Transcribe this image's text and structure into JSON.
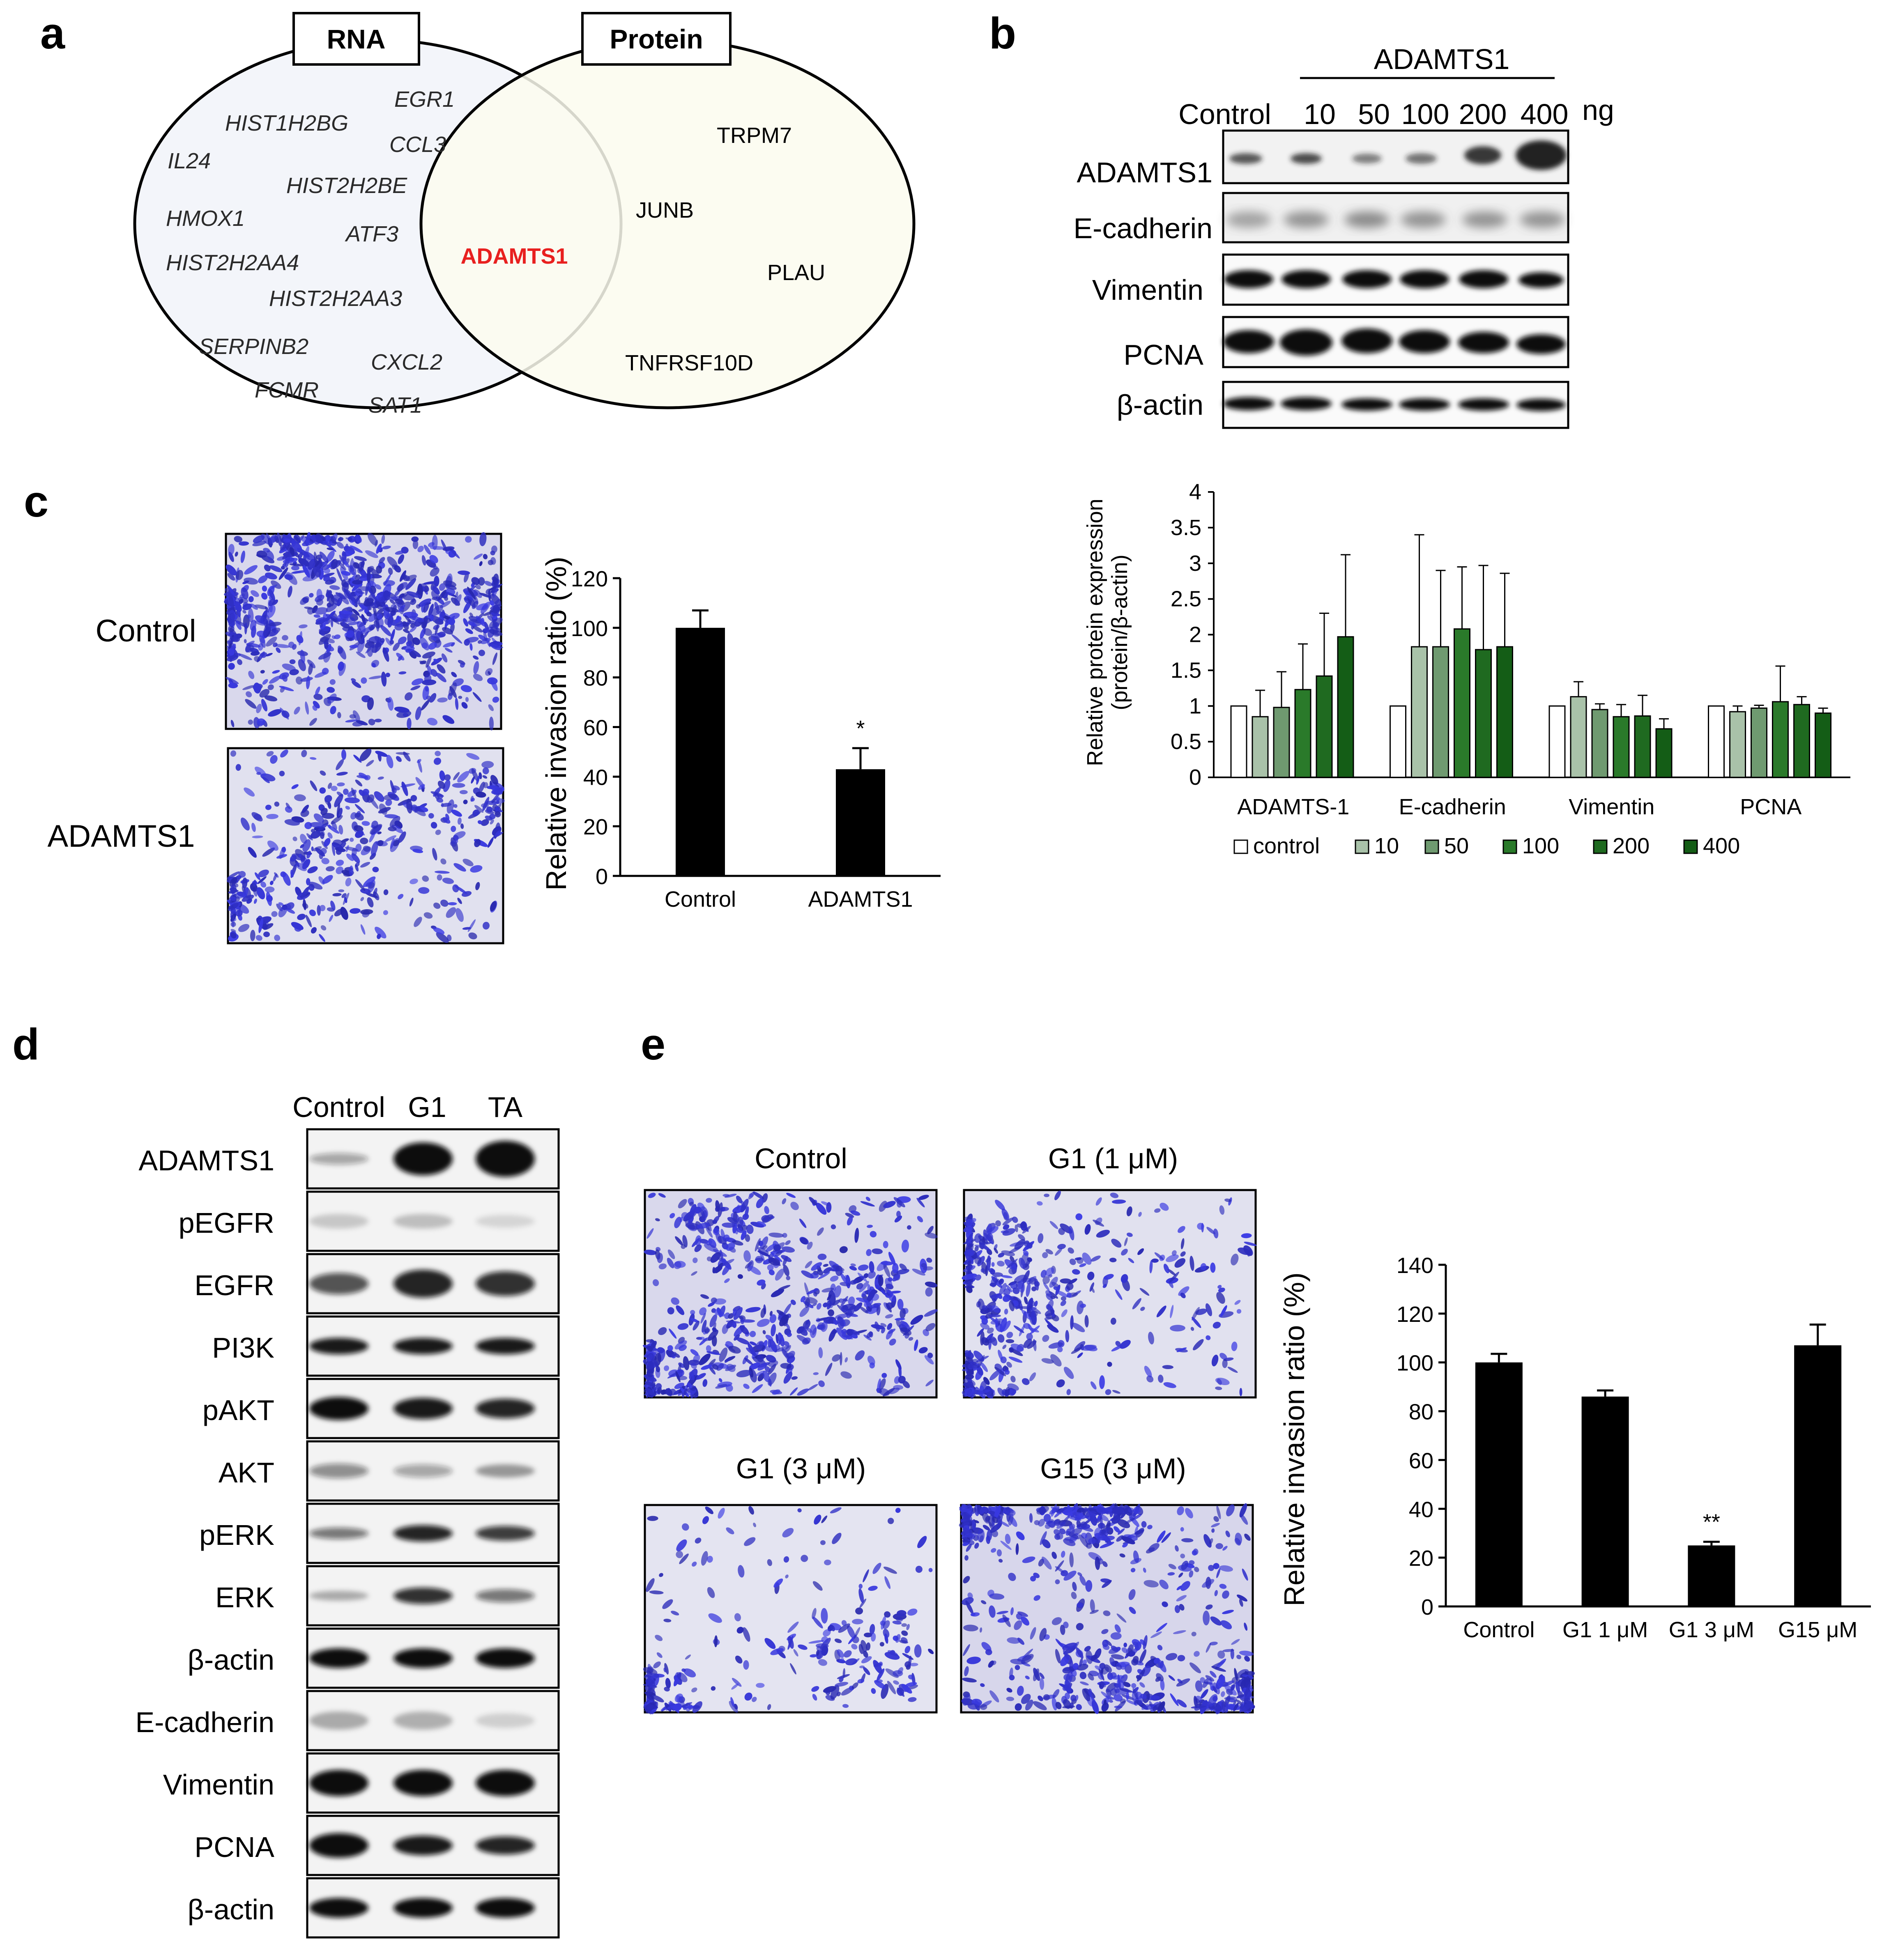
{
  "panels": {
    "a": "a",
    "b": "b",
    "c": "c",
    "d": "d",
    "e": "e"
  },
  "venn": {
    "rna_label": "RNA",
    "protein_label": "Protein",
    "rna_genes": [
      "EGR1",
      "HIST1H2BG",
      "CCL3",
      "IL24",
      "HIST2H2BE",
      "HMOX1",
      "ATF3",
      "HIST2H2AA4",
      "HIST2H2AA3",
      "SERPINB2",
      "CXCL2",
      "FCMR",
      "SAT1"
    ],
    "shared_gene": "ADAMTS1",
    "shared_color": "#e8201f",
    "protein_genes": [
      "TRPM7",
      "JUNB",
      "PLAU",
      "TNFRSF10D"
    ]
  },
  "blot_b": {
    "header": "ADAMTS1",
    "lanes": [
      "Control",
      "10",
      "50",
      "100",
      "200",
      "400"
    ],
    "unit": "ng",
    "rows": [
      "ADAMTS1",
      "E-cadherin",
      "Vimentin",
      "PCNA",
      "β-actin"
    ]
  },
  "panel_c": {
    "row_labels": [
      "Control",
      "ADAMTS1"
    ]
  },
  "blot_d": {
    "lanes": [
      "Control",
      "G1",
      "TA"
    ],
    "rows": [
      "ADAMTS1",
      "pEGFR",
      "EGFR",
      "PI3K",
      "pAKT",
      "AKT",
      "pERK",
      "ERK",
      "β-actin",
      "E-cadherin",
      "Vimentin",
      "PCNA",
      "β-actin"
    ]
  },
  "panel_e": {
    "image_labels": [
      "Control",
      "G1 (1 μM)",
      "G1 (3 μM)",
      "G15 (3 μM)"
    ]
  },
  "chart_data": [
    {
      "id": "b",
      "type": "bar",
      "categories": [
        "ADAMTS-1",
        "E-cadherin",
        "Vimentin",
        "PCNA"
      ],
      "series": [
        {
          "name": "control",
          "color": "#ffffff",
          "values": [
            1,
            1,
            1,
            1
          ],
          "errors": [
            0,
            0,
            0,
            0
          ]
        },
        {
          "name": "10",
          "color": "#a9c2a9",
          "values": [
            0.85,
            1.83,
            1.13,
            0.92
          ],
          "errors": [
            0.37,
            1.57,
            0.21,
            0.08
          ]
        },
        {
          "name": "50",
          "color": "#6f9a70",
          "values": [
            0.98,
            1.83,
            0.95,
            0.97
          ],
          "errors": [
            0.5,
            1.07,
            0.08,
            0.04
          ]
        },
        {
          "name": "100",
          "color": "#2a7a2a",
          "values": [
            1.23,
            2.08,
            0.85,
            1.06
          ],
          "errors": [
            0.64,
            0.87,
            0.17,
            0.5
          ]
        },
        {
          "name": "200",
          "color": "#1f6a20",
          "values": [
            1.42,
            1.79,
            0.86,
            1.02
          ],
          "errors": [
            0.88,
            1.18,
            0.29,
            0.11
          ]
        },
        {
          "name": "400",
          "color": "#145d16",
          "values": [
            1.97,
            1.83,
            0.68,
            0.9
          ],
          "errors": [
            1.15,
            1.03,
            0.14,
            0.07
          ]
        }
      ],
      "ylabel_line1": "Relative protein expression",
      "ylabel_line2": "(protein/β-actin)",
      "ylim": [
        0,
        4
      ],
      "yticks": [
        0,
        0.5,
        1,
        1.5,
        2,
        2.5,
        3,
        3.5,
        4
      ],
      "ytick_labels": [
        "0",
        "0.5",
        "1",
        "1.5",
        "2",
        "2.5",
        "3",
        "3.5",
        "4"
      ],
      "legend_placement": "bottom"
    },
    {
      "id": "c",
      "type": "bar",
      "categories": [
        "Control",
        "ADAMTS1"
      ],
      "values": [
        100,
        43
      ],
      "errors": [
        7,
        8.5
      ],
      "annotations": [
        "",
        "*"
      ],
      "ylabel": "Relative invasion ratio (%)",
      "ylim": [
        0,
        120
      ],
      "yticks": [
        0,
        20,
        40,
        60,
        80,
        100,
        120
      ]
    },
    {
      "id": "e",
      "type": "bar",
      "categories": [
        "Control",
        "G1  1 μM",
        "G1  3 μM",
        "G15 μM"
      ],
      "values": [
        100,
        86,
        25,
        107
      ],
      "errors": [
        3.5,
        2.5,
        1.5,
        8.5
      ],
      "annotations": [
        "",
        "",
        "**",
        ""
      ],
      "ylabel": "Relative invasion ratio (%)",
      "ylim": [
        0,
        140
      ],
      "yticks": [
        0,
        20,
        40,
        60,
        80,
        100,
        120,
        140
      ]
    }
  ]
}
